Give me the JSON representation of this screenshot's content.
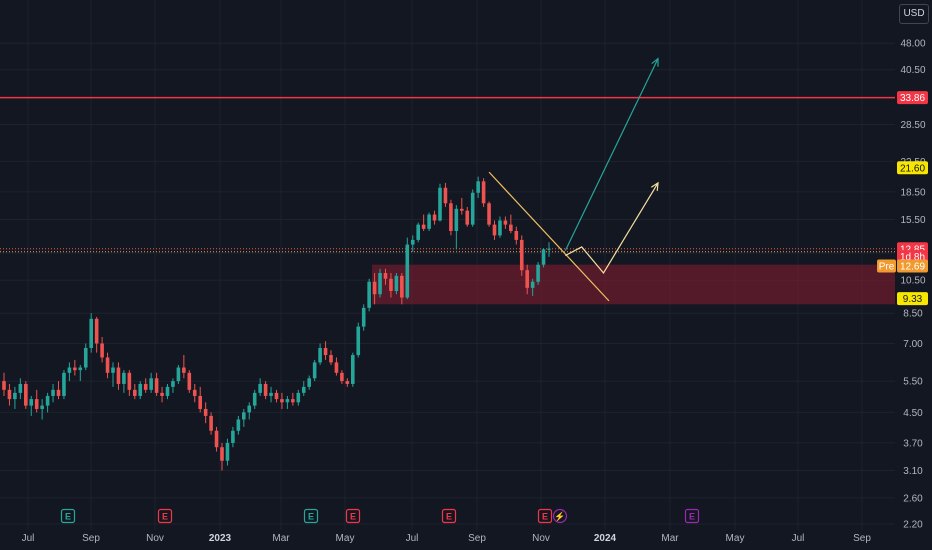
{
  "currency_label": "USD",
  "colors": {
    "background": "#131722",
    "grid": "#1e222d",
    "up": "#26a69a",
    "down": "#ef5350",
    "resistance_line": "#f23645",
    "zone_fill": "#8a1e30",
    "trendline": "#f0c060",
    "projection_bull": "#26a69a",
    "projection_alt": "#f5e0a0",
    "earnings_badge_green": "#26a69a",
    "earnings_badge_red": "#f23645",
    "earnings_badge_purple": "#9c27b0"
  },
  "chart_data": {
    "type": "candlestick",
    "scale": "log",
    "y_ticks": [
      2.2,
      2.6,
      3.1,
      3.7,
      4.5,
      5.5,
      7.0,
      8.5,
      10.5,
      12.5,
      15.5,
      18.5,
      22.5,
      28.5,
      40.5,
      48.0
    ],
    "y_tick_labels": [
      "2.20",
      "2.60",
      "3.10",
      "3.70",
      "4.50",
      "5.50",
      "7.00",
      "8.50",
      "10.50",
      "12.50",
      "15.50",
      "18.50",
      "22.50",
      "28.50",
      "40.50",
      "48.00"
    ],
    "ylim": [
      2.05,
      55
    ],
    "x_labels": [
      "Jul",
      "Sep",
      "Nov",
      "2023",
      "Mar",
      "May",
      "Jul",
      "Sep",
      "Nov",
      "2024",
      "Mar",
      "May",
      "Jul",
      "Sep"
    ],
    "price_tags": [
      {
        "label": "33.86",
        "value": 33.86,
        "style": "red"
      },
      {
        "label": "21.60",
        "value": 21.6,
        "style": "yellow"
      },
      {
        "label": "12.85",
        "value": 12.85,
        "style": "red"
      },
      {
        "label": "1d 8h",
        "value": 12.22,
        "style": "red"
      },
      {
        "label": "12.69",
        "value": 11.5,
        "style": "orange",
        "prefix": "Pre"
      },
      {
        "label": "9.33",
        "value": 9.33,
        "style": "yellow"
      }
    ],
    "resistance_level": 33.86,
    "current_price": 12.85,
    "zone": {
      "top": 11.6,
      "bottom": 9.0
    },
    "earnings_markers": [
      {
        "label": "E",
        "color": "green"
      },
      {
        "label": "E",
        "color": "red"
      },
      {
        "label": "E",
        "color": "green"
      },
      {
        "label": "E",
        "color": "red"
      },
      {
        "label": "E",
        "color": "red"
      },
      {
        "label": "E",
        "color": "red"
      },
      {
        "label": "⚡",
        "color": "purple"
      },
      {
        "label": "E",
        "color": "purple"
      }
    ],
    "candles": [
      [
        5.5,
        5.8,
        5.0,
        5.2
      ],
      [
        5.2,
        5.4,
        4.7,
        4.9
      ],
      [
        4.9,
        5.3,
        4.6,
        5.1
      ],
      [
        5.1,
        5.6,
        4.9,
        5.4
      ],
      [
        5.4,
        5.5,
        4.6,
        4.7
      ],
      [
        4.7,
        5.0,
        4.4,
        4.9
      ],
      [
        4.9,
        5.2,
        4.5,
        4.6
      ],
      [
        4.6,
        4.9,
        4.3,
        4.7
      ],
      [
        4.7,
        5.1,
        4.5,
        5.0
      ],
      [
        5.0,
        5.4,
        4.8,
        5.2
      ],
      [
        5.2,
        5.5,
        4.9,
        5.0
      ],
      [
        5.0,
        5.9,
        4.9,
        5.8
      ],
      [
        5.8,
        6.2,
        5.5,
        6.0
      ],
      [
        6.0,
        6.3,
        5.7,
        5.9
      ],
      [
        5.9,
        6.1,
        5.5,
        6.0
      ],
      [
        6.0,
        7.0,
        5.9,
        6.8
      ],
      [
        6.8,
        8.5,
        6.6,
        8.2
      ],
      [
        8.2,
        8.3,
        6.6,
        7.0
      ],
      [
        7.0,
        7.3,
        6.2,
        6.4
      ],
      [
        6.4,
        6.6,
        5.6,
        5.8
      ],
      [
        5.8,
        6.2,
        5.3,
        6.0
      ],
      [
        6.0,
        6.2,
        5.2,
        5.4
      ],
      [
        5.4,
        5.9,
        5.1,
        5.8
      ],
      [
        5.8,
        5.9,
        5.0,
        5.2
      ],
      [
        5.2,
        5.4,
        4.9,
        5.0
      ],
      [
        5.0,
        5.5,
        4.9,
        5.4
      ],
      [
        5.4,
        5.6,
        5.1,
        5.2
      ],
      [
        5.2,
        5.8,
        5.1,
        5.6
      ],
      [
        5.6,
        5.8,
        5.0,
        5.1
      ],
      [
        5.1,
        5.3,
        4.8,
        5.0
      ],
      [
        5.0,
        5.4,
        4.9,
        5.3
      ],
      [
        5.3,
        5.6,
        5.1,
        5.5
      ],
      [
        5.5,
        6.1,
        5.4,
        6.0
      ],
      [
        6.0,
        6.5,
        5.6,
        5.8
      ],
      [
        5.8,
        5.9,
        5.1,
        5.2
      ],
      [
        5.2,
        5.4,
        4.8,
        5.0
      ],
      [
        5.0,
        5.3,
        4.5,
        4.6
      ],
      [
        4.6,
        4.8,
        4.2,
        4.4
      ],
      [
        4.4,
        4.5,
        3.9,
        4.0
      ],
      [
        4.0,
        4.1,
        3.5,
        3.6
      ],
      [
        3.6,
        3.7,
        3.1,
        3.3
      ],
      [
        3.3,
        3.8,
        3.2,
        3.7
      ],
      [
        3.7,
        4.1,
        3.6,
        4.0
      ],
      [
        4.0,
        4.4,
        3.9,
        4.3
      ],
      [
        4.3,
        4.6,
        4.1,
        4.5
      ],
      [
        4.5,
        4.8,
        4.3,
        4.7
      ],
      [
        4.7,
        5.2,
        4.6,
        5.1
      ],
      [
        5.1,
        5.6,
        5.0,
        5.4
      ],
      [
        5.4,
        5.5,
        4.9,
        5.0
      ],
      [
        5.0,
        5.3,
        4.8,
        5.1
      ],
      [
        5.1,
        5.2,
        4.8,
        4.9
      ],
      [
        4.9,
        5.1,
        4.6,
        4.8
      ],
      [
        4.8,
        5.0,
        4.6,
        4.9
      ],
      [
        4.9,
        5.1,
        4.7,
        4.8
      ],
      [
        4.8,
        5.2,
        4.7,
        5.1
      ],
      [
        5.1,
        5.5,
        5.0,
        5.3
      ],
      [
        5.3,
        5.7,
        5.2,
        5.6
      ],
      [
        5.6,
        6.3,
        5.5,
        6.2
      ],
      [
        6.2,
        7.0,
        6.1,
        6.8
      ],
      [
        6.8,
        7.1,
        6.3,
        6.5
      ],
      [
        6.5,
        6.7,
        6.1,
        6.2
      ],
      [
        6.2,
        6.4,
        5.7,
        5.8
      ],
      [
        5.8,
        5.9,
        5.4,
        5.5
      ],
      [
        5.5,
        5.6,
        5.3,
        5.4
      ],
      [
        5.4,
        6.6,
        5.3,
        6.5
      ],
      [
        6.5,
        8.0,
        6.4,
        7.8
      ],
      [
        7.8,
        9.0,
        7.6,
        8.8
      ],
      [
        8.8,
        10.6,
        8.6,
        10.4
      ],
      [
        10.4,
        11.0,
        9.0,
        9.6
      ],
      [
        9.6,
        11.3,
        9.4,
        11.0
      ],
      [
        11.0,
        11.3,
        10.2,
        10.6
      ],
      [
        10.6,
        11.0,
        9.4,
        9.8
      ],
      [
        9.8,
        11.0,
        9.6,
        10.8
      ],
      [
        10.8,
        11.0,
        9.0,
        9.4
      ],
      [
        9.4,
        13.8,
        9.3,
        13.2
      ],
      [
        13.2,
        14.0,
        12.6,
        13.6
      ],
      [
        13.6,
        15.2,
        13.4,
        15.0
      ],
      [
        15.0,
        16.0,
        14.4,
        14.6
      ],
      [
        14.6,
        16.2,
        14.4,
        16.0
      ],
      [
        16.0,
        16.4,
        15.0,
        15.4
      ],
      [
        15.4,
        19.5,
        15.3,
        19.0
      ],
      [
        19.0,
        19.6,
        16.8,
        17.2
      ],
      [
        17.2,
        17.6,
        14.0,
        14.4
      ],
      [
        14.4,
        17.0,
        12.8,
        16.6
      ],
      [
        16.6,
        17.8,
        16.0,
        16.4
      ],
      [
        16.4,
        16.8,
        14.8,
        15.0
      ],
      [
        15.0,
        18.8,
        14.8,
        18.4
      ],
      [
        18.4,
        20.4,
        17.8,
        19.8
      ],
      [
        19.8,
        20.2,
        16.8,
        17.2
      ],
      [
        17.2,
        17.4,
        14.8,
        15.0
      ],
      [
        15.0,
        15.4,
        13.6,
        14.0
      ],
      [
        14.0,
        15.8,
        13.8,
        15.4
      ],
      [
        15.4,
        15.8,
        14.6,
        15.0
      ],
      [
        15.0,
        16.0,
        14.2,
        14.4
      ],
      [
        14.4,
        14.8,
        13.2,
        13.6
      ],
      [
        13.6,
        14.0,
        10.8,
        11.2
      ],
      [
        11.2,
        11.6,
        9.6,
        10.0
      ],
      [
        10.0,
        10.6,
        9.5,
        10.4
      ],
      [
        10.4,
        11.8,
        10.2,
        11.6
      ],
      [
        11.6,
        12.9,
        11.4,
        12.8
      ],
      [
        12.8,
        13.4,
        12.2,
        12.85
      ]
    ],
    "trendline_from": {
      "candle": 89,
      "value": 21.0
    },
    "trendline_to": {
      "candle": 111,
      "value": 9.2
    },
    "projection_bull": [
      {
        "candle": 103,
        "value": 12.7
      },
      {
        "candle": 120,
        "value": 43.5
      }
    ],
    "projection_alt": [
      {
        "candle": 103,
        "value": 12.3
      },
      {
        "candle": 106,
        "value": 13.0
      },
      {
        "candle": 110,
        "value": 11.0
      },
      {
        "candle": 120,
        "value": 19.6
      }
    ]
  }
}
